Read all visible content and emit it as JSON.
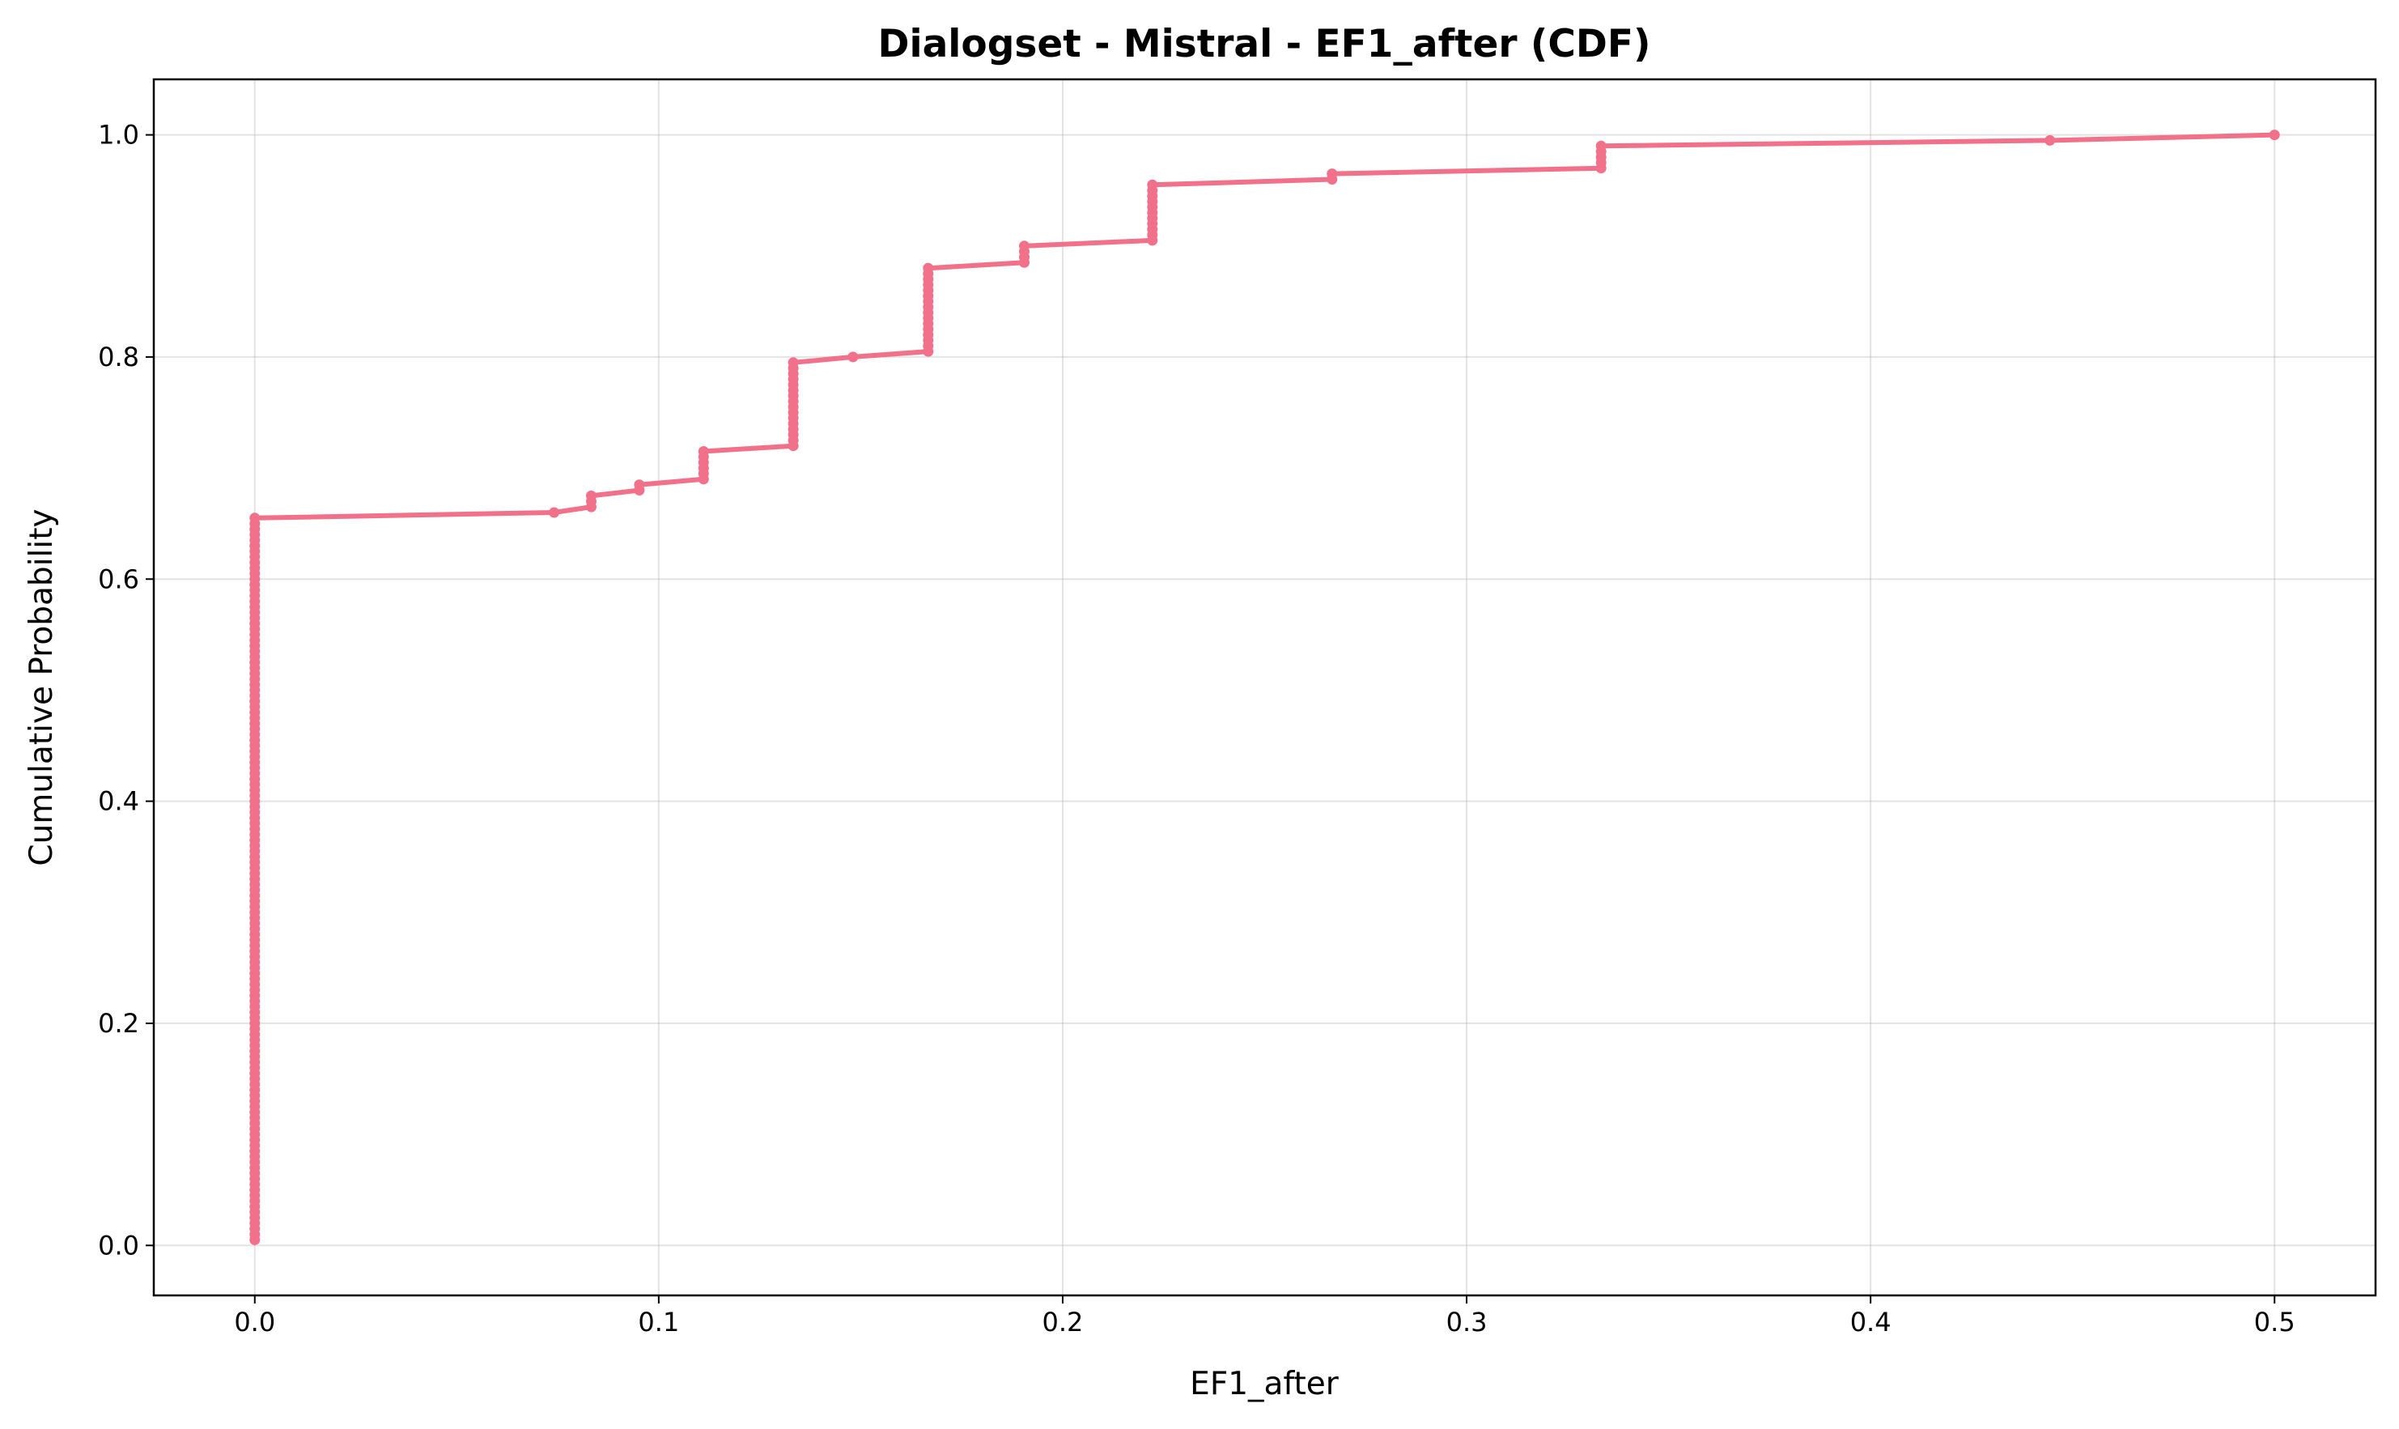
{
  "chart_data": {
    "type": "line",
    "title": "Dialogset - Mistral - EF1_after (CDF)",
    "xlabel": "EF1_after",
    "ylabel": "Cumulative Probability",
    "xlim": [
      -0.025,
      0.525
    ],
    "ylim": [
      -0.045,
      1.05
    ],
    "x_ticks": [
      0.0,
      0.1,
      0.2,
      0.3,
      0.4,
      0.5
    ],
    "x_tick_labels": [
      "0.0",
      "0.1",
      "0.2",
      "0.3",
      "0.4",
      "0.5"
    ],
    "y_ticks": [
      0.0,
      0.2,
      0.4,
      0.6,
      0.8,
      1.0
    ],
    "y_tick_labels": [
      "0.0",
      "0.2",
      "0.4",
      "0.6",
      "0.8",
      "1.0"
    ],
    "grid": true,
    "line_color": "#f07189",
    "series": [
      {
        "steps": [
          {
            "x": 0.0,
            "y_start": 0.005,
            "y_end": 0.655
          },
          {
            "x": 0.0741,
            "y_start": 0.66,
            "y_end": 0.66
          },
          {
            "x": 0.0833,
            "y_start": 0.665,
            "y_end": 0.675
          },
          {
            "x": 0.0952,
            "y_start": 0.68,
            "y_end": 0.685
          },
          {
            "x": 0.1111,
            "y_start": 0.69,
            "y_end": 0.715
          },
          {
            "x": 0.1333,
            "y_start": 0.72,
            "y_end": 0.795
          },
          {
            "x": 0.1481,
            "y_start": 0.8,
            "y_end": 0.8
          },
          {
            "x": 0.1667,
            "y_start": 0.805,
            "y_end": 0.88
          },
          {
            "x": 0.1905,
            "y_start": 0.885,
            "y_end": 0.9
          },
          {
            "x": 0.2222,
            "y_start": 0.905,
            "y_end": 0.955
          },
          {
            "x": 0.2667,
            "y_start": 0.96,
            "y_end": 0.965
          },
          {
            "x": 0.3333,
            "y_start": 0.97,
            "y_end": 0.99
          },
          {
            "x": 0.4444,
            "y_start": 0.995,
            "y_end": 0.995
          },
          {
            "x": 0.5,
            "y_start": 1.0,
            "y_end": 1.0
          }
        ],
        "point_step": 0.005
      }
    ]
  }
}
